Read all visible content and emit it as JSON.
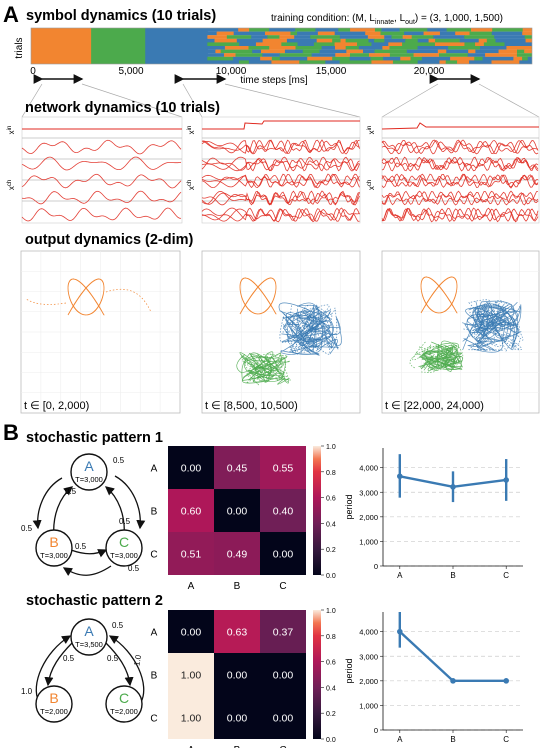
{
  "panel_a": {
    "label": "A",
    "title": "symbol dynamics (10 trials)",
    "condition": "training condition: (M, L",
    "condition_sub1": "innate",
    "condition_mid": ", L",
    "condition_sub2": "out",
    "condition_end": ") = (3, 1,000, 1,500)",
    "ylabel": "trials",
    "xlabel": "time steps [ms]",
    "xticks": [
      "0",
      "5,000",
      "10,000",
      "15,000",
      "20,000"
    ],
    "colors": {
      "A": "#3a7ab3",
      "B": "#f28530",
      "C": "#4caa4c"
    },
    "network_title": "network dynamics (10 trials)",
    "xin_label": "x",
    "xin_sup": "in",
    "xch_label": "x",
    "xch_sup": "ch",
    "output_title": "output dynamics (2-dim)",
    "windows": [
      "t ∈ [0, 2,000)",
      "t ∈ [8,500, 10,500)",
      "t ∈ [22,000, 24,000)"
    ]
  },
  "panel_b": {
    "label": "B",
    "patterns": [
      {
        "title": "stochastic pattern 1",
        "nodes": [
          {
            "name": "A",
            "T": "T=3,000",
            "color": "#3a7ab3"
          },
          {
            "name": "B",
            "T": "T=3,000",
            "color": "#f28530"
          },
          {
            "name": "C",
            "T": "T=3,000",
            "color": "#4caa4c"
          }
        ],
        "edge_labels": [
          "0.5",
          "0.5",
          "0.5",
          "0.5",
          "0.5",
          "0.5"
        ]
      },
      {
        "title": "stochastic pattern 2",
        "nodes": [
          {
            "name": "A",
            "T": "T=3,500",
            "color": "#3a7ab3"
          },
          {
            "name": "B",
            "T": "T=2,000",
            "color": "#f28530"
          },
          {
            "name": "C",
            "T": "T=2,000",
            "color": "#4caa4c"
          }
        ],
        "edge_labels": [
          "0.5",
          "0.5",
          "0.5",
          "1.0",
          "1.0"
        ]
      }
    ]
  },
  "chart_data": [
    {
      "type": "heatmap",
      "rows": [
        "A",
        "B",
        "C"
      ],
      "cols": [
        "A",
        "B",
        "C"
      ],
      "values": [
        [
          0.0,
          0.45,
          0.55
        ],
        [
          0.6,
          0.0,
          0.4
        ],
        [
          0.51,
          0.49,
          0.0
        ]
      ],
      "labels": [
        [
          "0.00",
          "0.45",
          "0.55"
        ],
        [
          "0.60",
          "0.00",
          "0.40"
        ],
        [
          "0.51",
          "0.49",
          "0.00"
        ]
      ],
      "colorbar_ticks": [
        "0.0",
        "0.2",
        "0.4",
        "0.6",
        "0.8",
        "1.0"
      ],
      "vmin": 0,
      "vmax": 1
    },
    {
      "type": "line",
      "categories": [
        "A",
        "B",
        "C"
      ],
      "values": [
        3650,
        3220,
        3500
      ],
      "errors": [
        [
          2780,
          4550
        ],
        [
          2600,
          3850
        ],
        [
          2650,
          4350
        ]
      ],
      "ylabel": "period",
      "ylim": [
        0,
        4800
      ],
      "yticks": [
        "0",
        "1,000",
        "2,000",
        "3,000",
        "4,000"
      ],
      "color": "#3a7ab3"
    },
    {
      "type": "heatmap",
      "rows": [
        "A",
        "B",
        "C"
      ],
      "cols": [
        "A",
        "B",
        "C"
      ],
      "values": [
        [
          0.0,
          0.63,
          0.37
        ],
        [
          1.0,
          0.0,
          0.0
        ],
        [
          1.0,
          0.0,
          0.0
        ]
      ],
      "labels": [
        [
          "0.00",
          "0.63",
          "0.37"
        ],
        [
          "1.00",
          "0.00",
          "0.00"
        ],
        [
          "1.00",
          "0.00",
          "0.00"
        ]
      ],
      "colorbar_ticks": [
        "0.0",
        "0.2",
        "0.4",
        "0.6",
        "0.8",
        "1.0"
      ],
      "vmin": 0,
      "vmax": 1
    },
    {
      "type": "line",
      "categories": [
        "A",
        "B",
        "C"
      ],
      "values": [
        4000,
        2000,
        2000
      ],
      "errors": [
        [
          3350,
          4800
        ],
        [
          2000,
          2000
        ],
        [
          2000,
          2000
        ]
      ],
      "ylabel": "period",
      "ylim": [
        0,
        4800
      ],
      "yticks": [
        "0",
        "1,000",
        "2,000",
        "3,000",
        "4,000"
      ],
      "color": "#3a7ab3"
    }
  ]
}
